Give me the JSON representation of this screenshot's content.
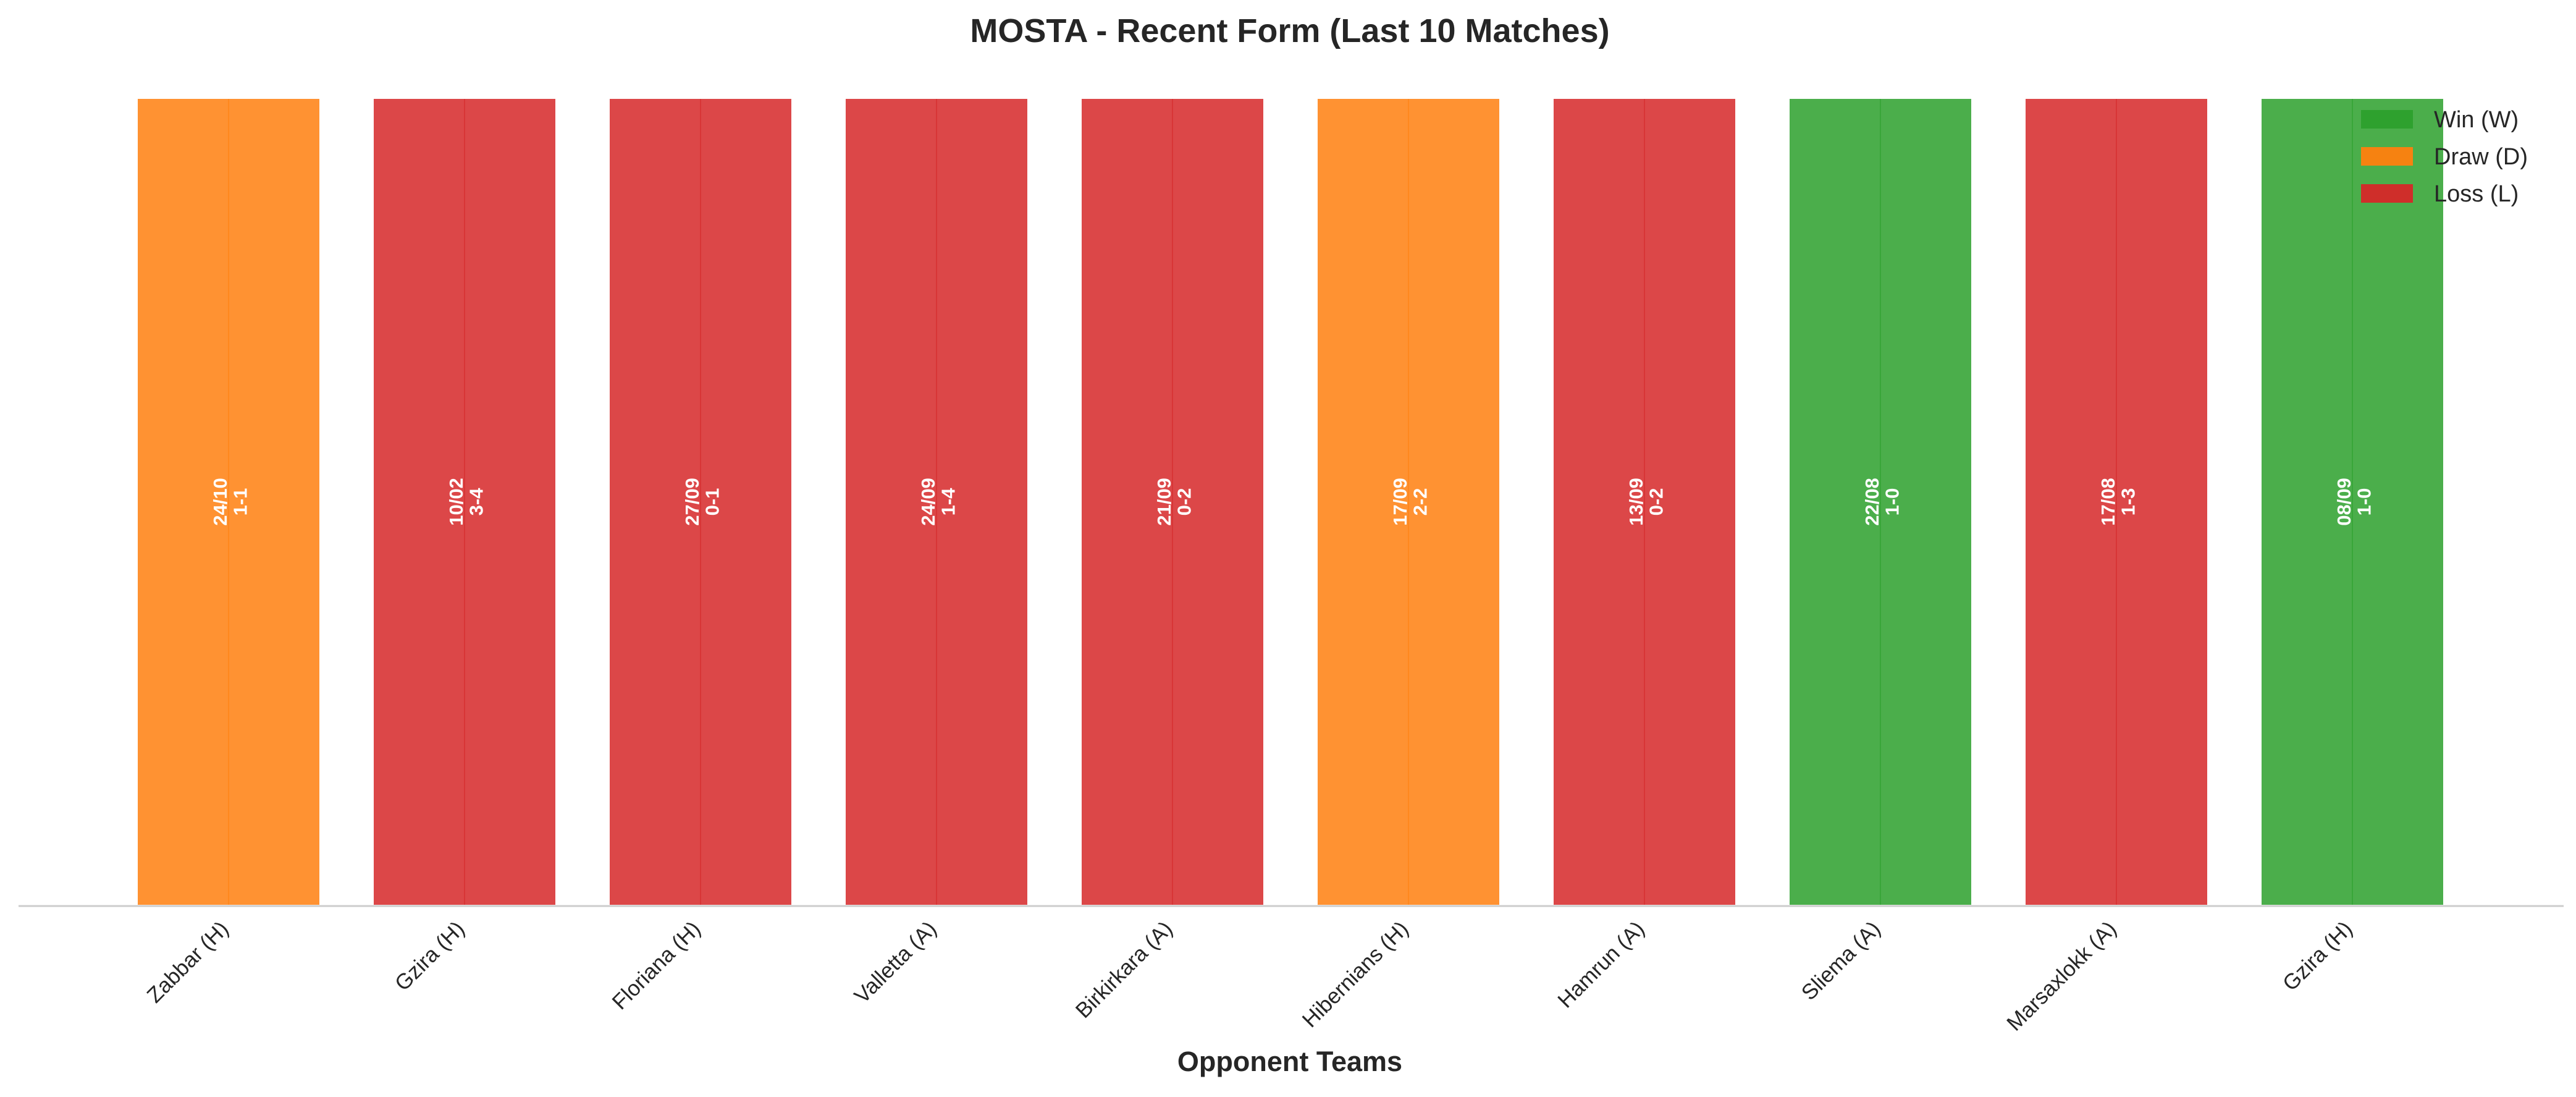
{
  "chart_data": {
    "type": "bar",
    "title": "MOSTA - Recent Form (Last 10 Matches)",
    "xlabel": "Opponent Teams",
    "ylabel": "",
    "categories": [
      "Zabbar (H)",
      "Gzira (H)",
      "Floriana (H)",
      "Valletta (A)",
      "Birkirkara (A)",
      "Hibernians (H)",
      "Hamrun (A)",
      "Sliema (A)",
      "Marsaxlokk (A)",
      "Gzira (H)"
    ],
    "values": [
      1,
      1,
      1,
      1,
      1,
      1,
      1,
      1,
      1,
      1
    ],
    "ylim": [
      0,
      1
    ],
    "results": [
      "D",
      "L",
      "L",
      "L",
      "L",
      "D",
      "L",
      "W",
      "L",
      "W"
    ],
    "dates": [
      "24/10",
      "10/02",
      "27/09",
      "24/09",
      "21/09",
      "17/09",
      "13/09",
      "22/08",
      "17/08",
      "08/09"
    ],
    "scores": [
      "1-1",
      "3-4",
      "0-1",
      "1-4",
      "0-2",
      "2-2",
      "0-2",
      "1-0",
      "1-3",
      "1-0"
    ],
    "legend": {
      "placement": "top-right",
      "entries": [
        {
          "key": "W",
          "label": "Win (W)"
        },
        {
          "key": "D",
          "label": "Draw (D)"
        },
        {
          "key": "L",
          "label": "Loss (L)"
        }
      ]
    },
    "colors": {
      "W": "#2ca02c",
      "D": "#ff7f0e",
      "L": "#d62728"
    },
    "grid": false
  }
}
